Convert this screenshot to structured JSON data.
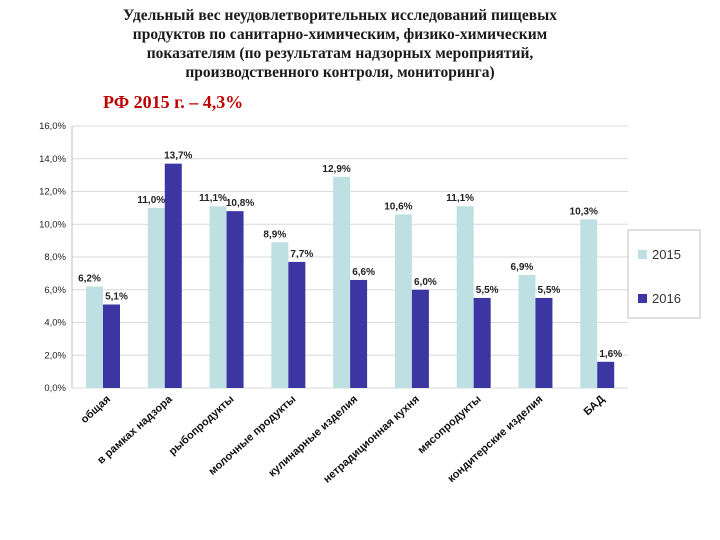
{
  "chart_data": {
    "type": "bar",
    "title": "Удельный вес неудовлетворительных исследований пищевых\nпродуктов по  санитарно-химическим, физико-химическим\nпоказателям (по результатам надзорных мероприятий,\nпроизводственного контроля, мониторинга)",
    "subtitle": "РФ 2015 г. – 4,3%",
    "categories": [
      "общая",
      "в рамках надзора",
      "рыбопродукты",
      "молочные продукты",
      "кулинарные изделия",
      "нетрадиционная кухня",
      "мясопродукты",
      "кондитерские изделия",
      "БАД"
    ],
    "series": [
      {
        "name": "2015",
        "color": "#bfe0e3",
        "values": [
          6.2,
          11.0,
          11.1,
          8.9,
          12.9,
          10.6,
          11.1,
          6.9,
          10.3
        ],
        "labels": [
          "6,2%",
          "11,0%",
          "11,1%",
          "8,9%",
          "12,9%",
          "10,6%",
          "11,1%",
          "6,9%",
          "10,3%"
        ]
      },
      {
        "name": "2016",
        "color": "#3b36a1",
        "values": [
          5.1,
          13.7,
          10.8,
          7.7,
          6.6,
          6.0,
          5.5,
          5.5,
          1.6
        ],
        "labels": [
          "5,1%",
          "13,7%",
          "10,8%",
          "7,7%",
          "6,6%",
          "6,0%",
          "5,5%",
          "5,5%",
          "1,6%"
        ]
      }
    ],
    "ylim": [
      0,
      16
    ],
    "yticks": [
      0,
      2,
      4,
      6,
      8,
      10,
      12,
      14,
      16
    ],
    "ytick_labels": [
      "0,0%",
      "2,0%",
      "4,0%",
      "6,0%",
      "8,0%",
      "10,0%",
      "12,0%",
      "14,0%",
      "16,0%"
    ],
    "grid": true,
    "legend": "right"
  }
}
